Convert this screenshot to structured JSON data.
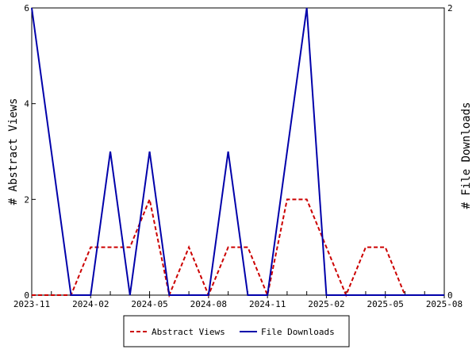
{
  "chart_data": {
    "type": "line",
    "x": [
      "2023-11",
      "2023-12",
      "2024-01",
      "2024-02",
      "2024-03",
      "2024-04",
      "2024-05",
      "2024-06",
      "2024-07",
      "2024-08",
      "2024-09",
      "2024-10",
      "2024-11",
      "2024-12",
      "2025-01",
      "2025-02",
      "2025-03",
      "2025-04",
      "2025-05",
      "2025-06",
      "2025-07",
      "2025-08"
    ],
    "x_tick_labels": [
      "2023-11",
      "2024-02",
      "2024-05",
      "2024-08",
      "2024-11",
      "2025-02",
      "2025-05",
      "2025-08"
    ],
    "y_left": {
      "label": "# Abstract Views",
      "ylim": [
        0,
        6
      ],
      "ticks": [
        "0",
        "2",
        "4",
        "6"
      ]
    },
    "y_right": {
      "label": "# File Downloads",
      "ylim": [
        0,
        2
      ],
      "ticks": [
        "0",
        "2"
      ]
    },
    "series": [
      {
        "name": "Abstract Views",
        "axis": "left",
        "color": "#cc0000",
        "style": "dashed",
        "values": [
          0,
          0,
          0,
          1,
          1,
          1,
          2,
          0,
          1,
          0,
          1,
          1,
          0,
          2,
          2,
          1,
          0,
          1,
          1,
          0,
          0,
          0
        ]
      },
      {
        "name": "File Downloads",
        "axis": "right",
        "color": "#0000aa",
        "style": "solid",
        "values": [
          2,
          1,
          0,
          0,
          1,
          0,
          1,
          0,
          0,
          0,
          1,
          0,
          0,
          1,
          2,
          0,
          0,
          0,
          0,
          0,
          0,
          0
        ]
      }
    ],
    "grid": false,
    "legend_position": "bottom-center"
  }
}
